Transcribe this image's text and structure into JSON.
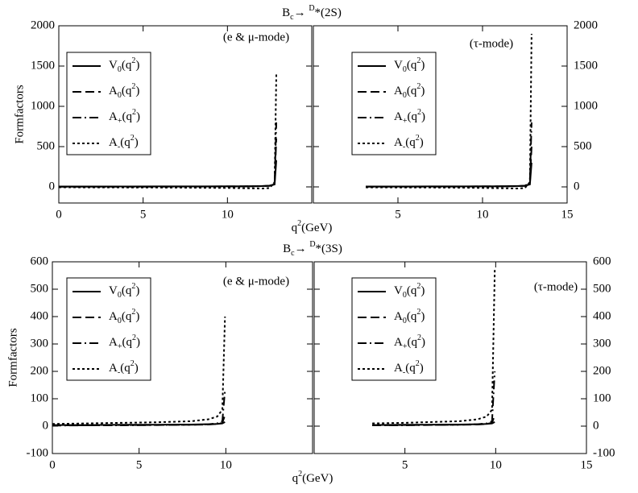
{
  "chart_data": [
    {
      "type": "line",
      "title": "Bc→ D*(2S)",
      "x_label": "q2(GeV)",
      "y_label": "Formfactors",
      "annotation": "(e & μ-mode)",
      "xlim": [
        0,
        15
      ],
      "xticks": [
        0,
        5,
        10
      ],
      "ylim": [
        -200,
        2000
      ],
      "yticks": [
        0,
        500,
        1000,
        1500,
        2000
      ],
      "x": [
        0,
        2,
        4,
        6,
        8,
        10,
        11,
        12,
        12.5,
        12.8,
        12.9
      ],
      "series": [
        {
          "name": "V0(q2)",
          "color": "#000000",
          "dash": "solid",
          "values": [
            5,
            5,
            5,
            6,
            6,
            7,
            8,
            10,
            14,
            30,
            330
          ]
        },
        {
          "name": "A0(q2)",
          "color": "#000000",
          "dash": "dashed",
          "values": [
            3,
            3,
            4,
            4,
            5,
            6,
            7,
            9,
            13,
            35,
            600
          ]
        },
        {
          "name": "A+(q2)",
          "color": "#000000",
          "dash": "dashdot",
          "values": [
            2,
            2,
            3,
            3,
            4,
            5,
            6,
            9,
            15,
            50,
            800
          ]
        },
        {
          "name": "A-(q2)",
          "color": "#000000",
          "dash": "dotted",
          "values": [
            -5,
            -6,
            -7,
            -8,
            -10,
            -13,
            -16,
            -20,
            -15,
            60,
            1400
          ]
        }
      ]
    },
    {
      "type": "line",
      "annotation": "(τ-mode)",
      "xlim": [
        0,
        15
      ],
      "xticks": [
        5,
        10,
        15
      ],
      "ylim": [
        -200,
        2000
      ],
      "yticks": [
        0,
        500,
        1000,
        1500,
        2000
      ],
      "x": [
        3.1,
        5,
        7,
        9,
        10,
        11,
        12,
        12.5,
        12.8,
        12.9
      ],
      "series": [
        {
          "name": "V0(q2)",
          "color": "#000000",
          "dash": "solid",
          "values": [
            5,
            5,
            6,
            6,
            7,
            8,
            10,
            14,
            30,
            300
          ]
        },
        {
          "name": "A0(q2)",
          "color": "#000000",
          "dash": "dashed",
          "values": [
            4,
            4,
            4,
            5,
            6,
            7,
            9,
            13,
            35,
            500
          ]
        },
        {
          "name": "A+(q2)",
          "color": "#000000",
          "dash": "dashdot",
          "values": [
            3,
            3,
            4,
            4,
            5,
            6,
            9,
            15,
            50,
            800
          ]
        },
        {
          "name": "A-(q2)",
          "color": "#000000",
          "dash": "dotted",
          "values": [
            -6,
            -7,
            -8,
            -10,
            -13,
            -16,
            -20,
            -15,
            60,
            1900
          ]
        }
      ]
    },
    {
      "type": "line",
      "title": "Bc→ D*(3S)",
      "x_label": "q2(GeV)",
      "y_label": "Formfactors",
      "annotation": "(e & μ-mode)",
      "xlim": [
        0,
        15
      ],
      "xticks": [
        0,
        5,
        10
      ],
      "ylim": [
        -100,
        600
      ],
      "yticks": [
        -100,
        0,
        100,
        200,
        300,
        400,
        500,
        600
      ],
      "x": [
        0,
        2,
        4,
        6,
        8,
        9,
        9.5,
        9.8,
        9.95
      ],
      "series": [
        {
          "name": "V0(q2)",
          "color": "#000000",
          "dash": "solid",
          "values": [
            4,
            4,
            5,
            5,
            6,
            7,
            8,
            10,
            15
          ]
        },
        {
          "name": "A0(q2)",
          "color": "#000000",
          "dash": "dashed",
          "values": [
            3,
            3,
            4,
            4,
            5,
            6,
            8,
            12,
            40
          ]
        },
        {
          "name": "A+(q2)",
          "color": "#000000",
          "dash": "dashdot",
          "values": [
            2,
            3,
            3,
            4,
            5,
            7,
            10,
            18,
            130
          ]
        },
        {
          "name": "A-(q2)",
          "color": "#000000",
          "dash": "dotted",
          "values": [
            8,
            10,
            12,
            14,
            18,
            25,
            35,
            60,
            400
          ]
        }
      ]
    },
    {
      "type": "line",
      "annotation": "(τ-mode)",
      "xlim": [
        0,
        15
      ],
      "xticks": [
        5,
        10,
        15
      ],
      "ylim": [
        -100,
        600
      ],
      "yticks": [
        -100,
        0,
        100,
        200,
        300,
        400,
        500,
        600
      ],
      "x": [
        3.2,
        5,
        6,
        8,
        9,
        9.5,
        9.8,
        9.95
      ],
      "series": [
        {
          "name": "V0(q2)",
          "color": "#000000",
          "dash": "solid",
          "values": [
            4,
            5,
            5,
            6,
            7,
            8,
            10,
            15
          ]
        },
        {
          "name": "A0(q2)",
          "color": "#000000",
          "dash": "dashed",
          "values": [
            3,
            4,
            4,
            5,
            6,
            8,
            12,
            40
          ]
        },
        {
          "name": "A+(q2)",
          "color": "#000000",
          "dash": "dashdot",
          "values": [
            3,
            3,
            4,
            5,
            7,
            10,
            18,
            200
          ]
        },
        {
          "name": "A-(q2)",
          "color": "#000000",
          "dash": "dotted",
          "values": [
            10,
            12,
            14,
            18,
            25,
            35,
            60,
            570
          ]
        }
      ]
    }
  ]
}
